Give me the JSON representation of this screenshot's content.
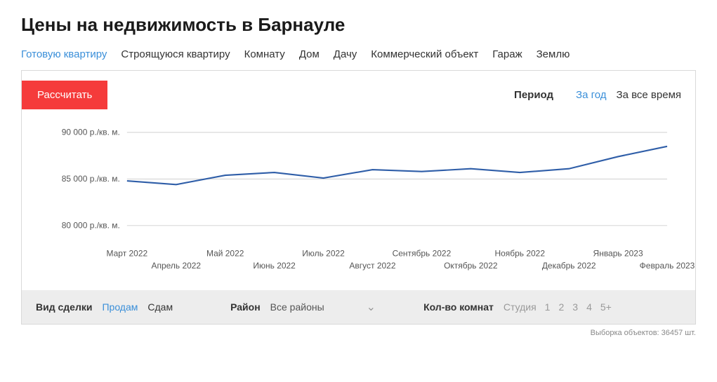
{
  "title": "Цены на недвижимость в Барнауле",
  "tabs": [
    {
      "label": "Готовую квартиру",
      "active": true
    },
    {
      "label": "Строящуюся квартиру",
      "active": false
    },
    {
      "label": "Комнату",
      "active": false
    },
    {
      "label": "Дом",
      "active": false
    },
    {
      "label": "Дачу",
      "active": false
    },
    {
      "label": "Коммерческий объект",
      "active": false
    },
    {
      "label": "Гараж",
      "active": false
    },
    {
      "label": "Землю",
      "active": false
    }
  ],
  "calc_button": "Рассчитать",
  "period": {
    "label": "Период",
    "options": [
      {
        "label": "За год",
        "active": true
      },
      {
        "label": "За все время",
        "active": false
      }
    ]
  },
  "chart": {
    "type": "line",
    "ylabel_suffix": " р./кв. м.",
    "ylim": [
      78000,
      91000
    ],
    "yticks": [
      80000,
      85000,
      90000
    ],
    "ytick_labels": [
      "80 000 р./кв. м.",
      "85 000 р./кв. м.",
      "90 000 р./кв. м."
    ],
    "categories": [
      "Март 2022",
      "Апрель 2022",
      "Май 2022",
      "Июнь 2022",
      "Июль 2022",
      "Август 2022",
      "Сентябрь 2022",
      "Октябрь 2022",
      "Ноябрь 2022",
      "Декабрь 2022",
      "Январь 2023",
      "Февраль 2023"
    ],
    "values": [
      84800,
      84400,
      85400,
      85700,
      85100,
      86000,
      85800,
      86100,
      85700,
      86100,
      87400,
      88500
    ],
    "line_color": "#2f5ea8",
    "line_width": 2.2,
    "grid_color": "#cfcfcf",
    "background_color": "#ffffff",
    "tick_font_size": 12,
    "tick_color": "#555555",
    "xlabel_stagger": true
  },
  "filters": {
    "deal_label": "Вид сделки",
    "deal_options": [
      {
        "label": "Продам",
        "active": true
      },
      {
        "label": "Сдам",
        "active": false
      }
    ],
    "district_label": "Район",
    "district_value": "Все районы",
    "rooms_label": "Кол-во комнат",
    "rooms_options": [
      "Студия",
      "1",
      "2",
      "3",
      "4",
      "5+"
    ]
  },
  "footnote": "Выборка объектов: 36457 шт."
}
